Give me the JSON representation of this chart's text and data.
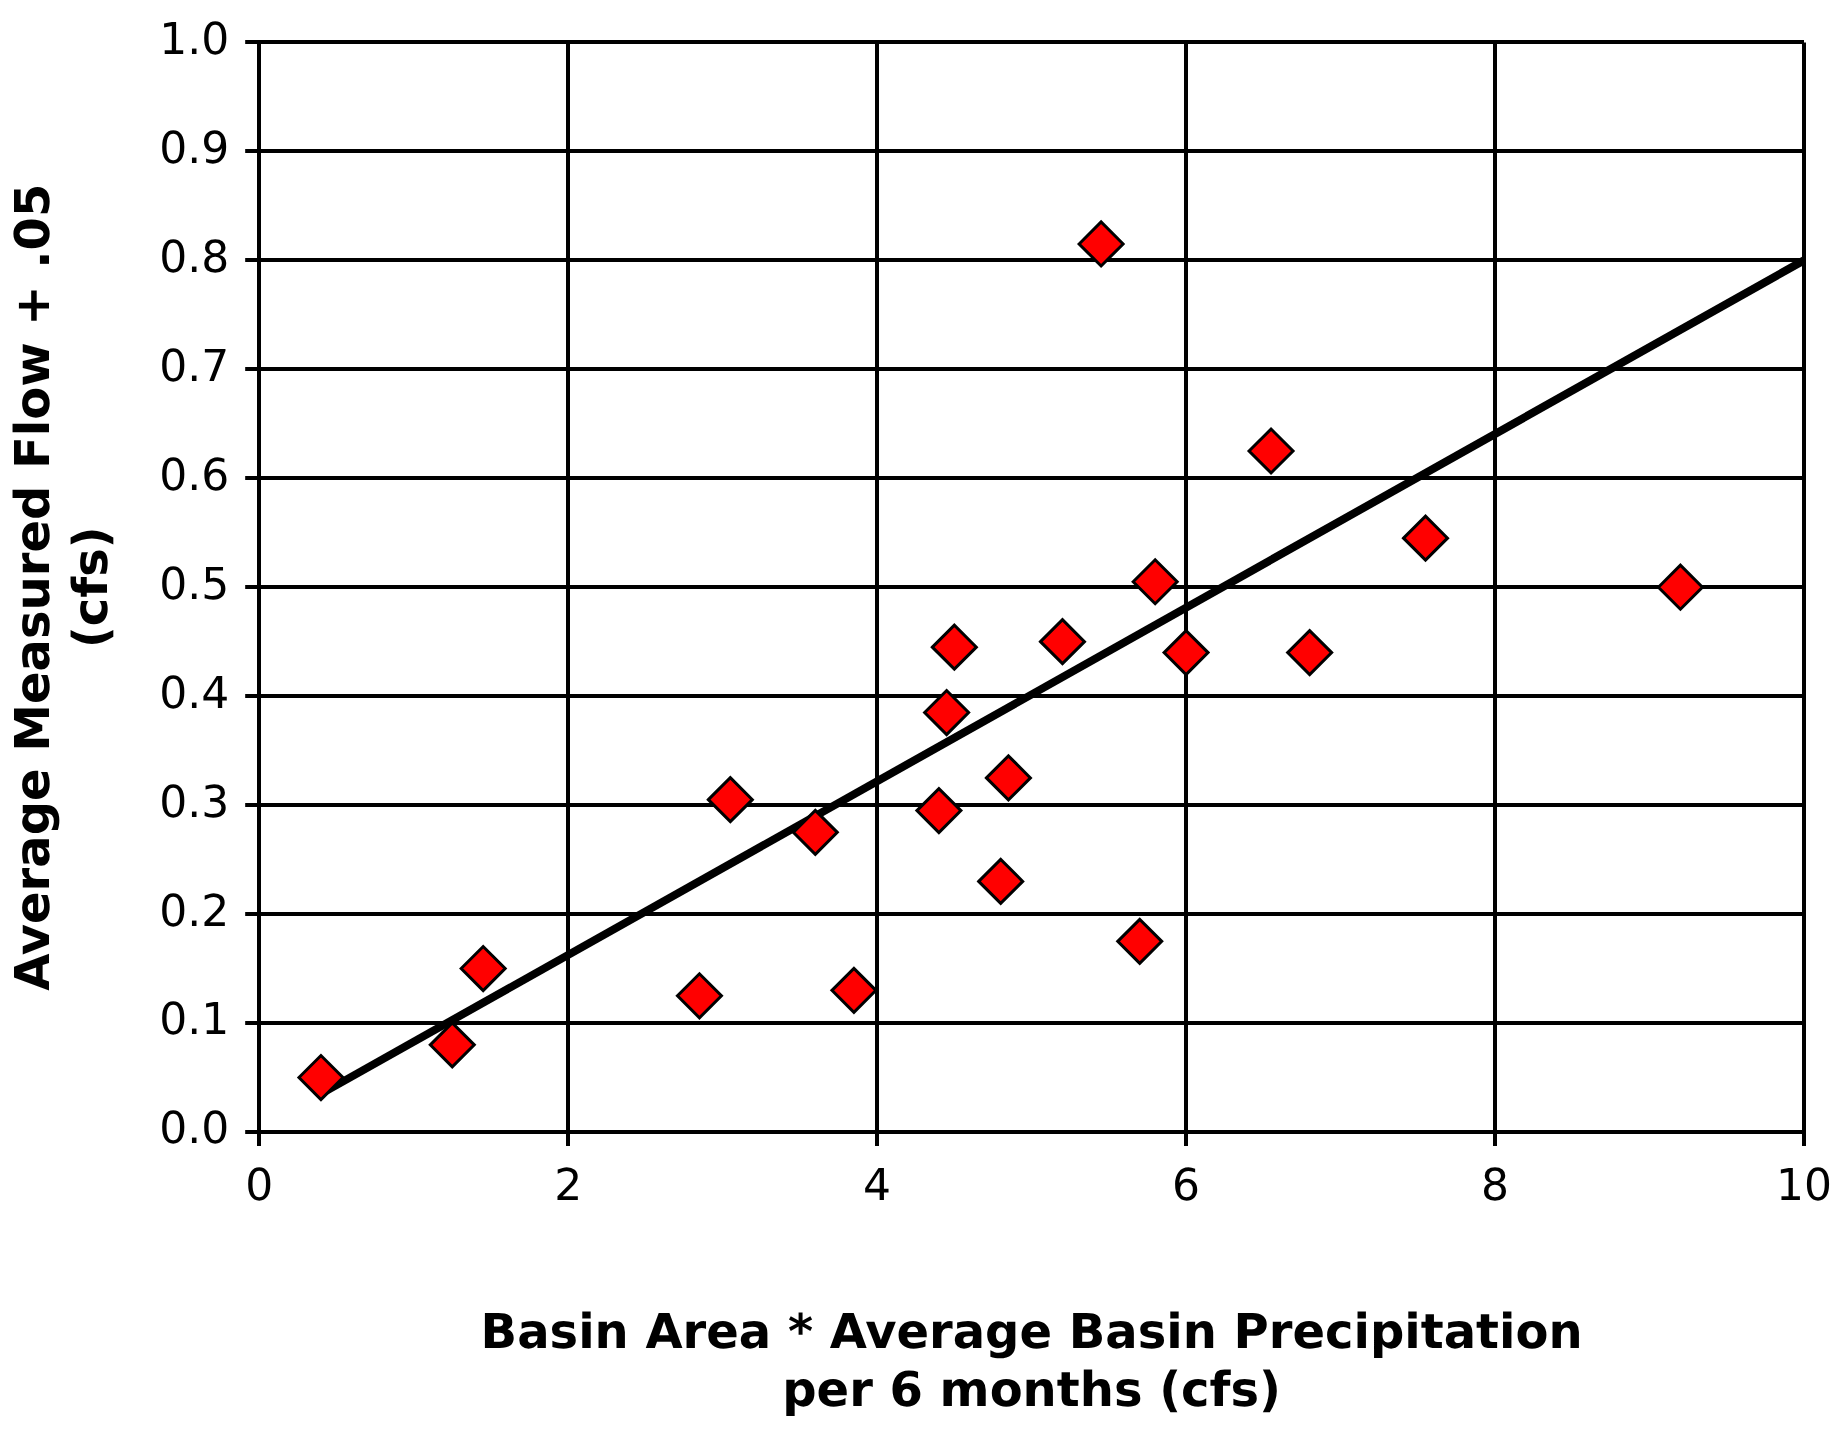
{
  "chart_data": {
    "type": "scatter",
    "xlabel": "Basin Area * Average Basin Precipitation\nper 6 months (cfs)",
    "ylabel": "Average Measured Flow + .05\n(cfs)",
    "xlim": [
      0,
      10
    ],
    "xticks": [
      0,
      2,
      4,
      6,
      8,
      10
    ],
    "ylim": [
      0,
      1
    ],
    "yticks": [
      {
        "value": 0,
        "label": "0.0"
      },
      0.1,
      0.2,
      0.3,
      0.4,
      0.5,
      0.6,
      0.7,
      0.8,
      0.9,
      {
        "value": 1,
        "label": "1.0"
      }
    ],
    "grid": true,
    "legend": false,
    "series": [
      {
        "color": "#ff0000",
        "marker": "diamond",
        "x": [
          0.4,
          1.25,
          1.45,
          2.85,
          3.05,
          3.6,
          3.85,
          4.4,
          4.45,
          4.5,
          4.8,
          4.85,
          5.2,
          5.45,
          5.7,
          5.8,
          6.0,
          6.55,
          6.8,
          7.55,
          9.2
        ],
        "values": [
          0.05,
          0.08,
          0.15,
          0.125,
          0.305,
          0.275,
          0.13,
          0.295,
          0.385,
          0.445,
          0.23,
          0.325,
          0.45,
          0.815,
          0.175,
          0.505,
          0.44,
          0.625,
          0.44,
          0.545,
          0.5
        ]
      },
      {
        "type": "line",
        "color": "#000000",
        "marker": "none",
        "line_style": "solid",
        "x": [
          0.4,
          10
        ],
        "values": [
          0.035,
          0.8
        ]
      }
    ]
  }
}
